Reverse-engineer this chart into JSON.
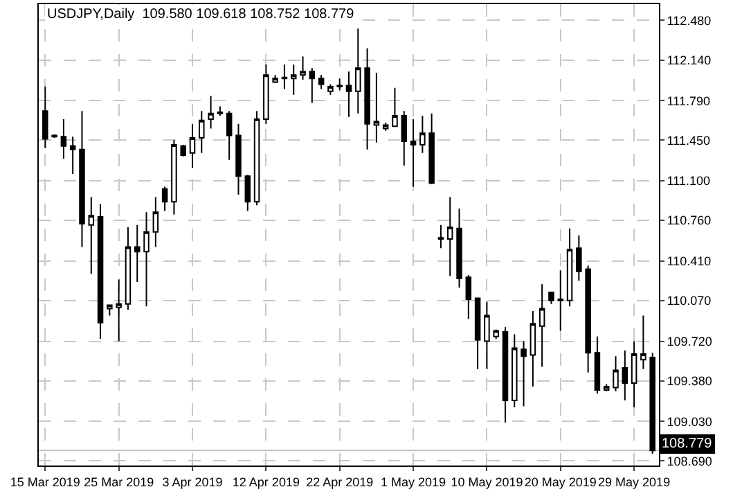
{
  "chart_data": {
    "type": "candlestick",
    "title": "USDJPY,Daily  109.580 109.618 108.752 108.779",
    "categories": [
      "15 Mar 2019",
      null,
      null,
      null,
      null,
      null,
      null,
      null,
      "25 Mar 2019",
      null,
      null,
      null,
      null,
      null,
      null,
      null,
      "3 Apr 2019",
      null,
      null,
      null,
      null,
      null,
      null,
      null,
      "12 Apr 2019",
      null,
      null,
      null,
      null,
      null,
      null,
      null,
      "22 Apr 2019",
      null,
      null,
      null,
      null,
      null,
      null,
      null,
      "1 May 2019",
      null,
      null,
      null,
      null,
      null,
      null,
      null,
      "10 May 2019",
      null,
      null,
      null,
      null,
      null,
      null,
      null,
      "20 May 2019",
      null,
      null,
      null,
      null,
      null,
      null,
      null,
      "29 May 2019",
      null,
      null
    ],
    "ohlc": [
      [
        111.7,
        111.91,
        111.38,
        111.46
      ],
      [
        111.49,
        111.5,
        111.47,
        111.48
      ],
      [
        111.48,
        111.63,
        111.29,
        111.4
      ],
      [
        111.4,
        111.48,
        111.16,
        111.37
      ],
      [
        111.37,
        111.7,
        110.53,
        110.73
      ],
      [
        110.72,
        110.96,
        110.3,
        110.8
      ],
      [
        110.79,
        110.9,
        109.74,
        109.88
      ],
      [
        110.0,
        110.03,
        109.94,
        110.03
      ],
      [
        110.01,
        110.25,
        109.72,
        110.04
      ],
      [
        110.04,
        110.7,
        109.99,
        110.53
      ],
      [
        110.53,
        110.72,
        110.23,
        110.49
      ],
      [
        110.49,
        110.83,
        110.02,
        110.66
      ],
      [
        110.66,
        110.96,
        110.53,
        110.83
      ],
      [
        111.03,
        111.05,
        110.84,
        110.92
      ],
      [
        110.92,
        111.45,
        110.81,
        111.41
      ],
      [
        111.4,
        111.41,
        111.31,
        111.32
      ],
      [
        111.34,
        111.59,
        111.21,
        111.47
      ],
      [
        111.47,
        111.7,
        111.34,
        111.62
      ],
      [
        111.63,
        111.83,
        111.55,
        111.68
      ],
      [
        111.68,
        111.74,
        111.66,
        111.69
      ],
      [
        111.68,
        111.7,
        111.28,
        111.49
      ],
      [
        111.49,
        111.59,
        110.98,
        111.14
      ],
      [
        111.14,
        111.15,
        110.84,
        110.92
      ],
      [
        110.92,
        111.7,
        110.89,
        111.63
      ],
      [
        111.63,
        112.1,
        111.59,
        112.01
      ],
      [
        111.95,
        112.01,
        111.94,
        111.98
      ],
      [
        111.98,
        112.1,
        111.89,
        111.99
      ],
      [
        111.98,
        112.1,
        111.84,
        112.01
      ],
      [
        112.01,
        112.17,
        111.97,
        112.04
      ],
      [
        112.04,
        112.07,
        111.77,
        111.98
      ],
      [
        111.98,
        112.01,
        111.89,
        111.93
      ],
      [
        111.87,
        111.93,
        111.84,
        111.91
      ],
      [
        111.91,
        111.98,
        111.88,
        111.92
      ],
      [
        111.92,
        112.04,
        111.65,
        111.87
      ],
      [
        111.87,
        112.41,
        111.68,
        112.07
      ],
      [
        112.07,
        112.24,
        111.37,
        111.59
      ],
      [
        111.58,
        112.03,
        111.43,
        111.61
      ],
      [
        111.55,
        111.6,
        111.53,
        111.58
      ],
      [
        111.57,
        111.9,
        111.57,
        111.66
      ],
      [
        111.66,
        111.7,
        111.23,
        111.44
      ],
      [
        111.44,
        111.63,
        111.05,
        111.41
      ],
      [
        111.41,
        111.66,
        111.34,
        111.51
      ],
      [
        111.51,
        111.68,
        111.07,
        111.08
      ],
      [
        110.61,
        110.72,
        110.52,
        110.6
      ],
      [
        110.6,
        110.96,
        110.28,
        110.7
      ],
      [
        110.69,
        110.86,
        110.18,
        110.26
      ],
      [
        110.27,
        110.29,
        109.91,
        110.08
      ],
      [
        110.09,
        110.09,
        109.48,
        109.73
      ],
      [
        109.72,
        110.06,
        109.48,
        109.94
      ],
      [
        109.76,
        109.82,
        109.74,
        109.81
      ],
      [
        109.8,
        109.84,
        109.02,
        109.21
      ],
      [
        109.21,
        109.78,
        109.15,
        109.66
      ],
      [
        109.65,
        109.72,
        109.16,
        109.59
      ],
      [
        109.6,
        109.98,
        109.33,
        109.87
      ],
      [
        109.85,
        110.21,
        109.5,
        110.0
      ],
      [
        110.14,
        110.14,
        110.04,
        110.07
      ],
      [
        110.08,
        110.33,
        109.81,
        110.07
      ],
      [
        110.07,
        110.69,
        110.02,
        110.51
      ],
      [
        110.52,
        110.63,
        110.24,
        110.32
      ],
      [
        110.34,
        110.37,
        109.45,
        109.62
      ],
      [
        109.62,
        109.76,
        109.27,
        109.3
      ],
      [
        109.3,
        109.35,
        109.29,
        109.33
      ],
      [
        109.32,
        109.59,
        109.29,
        109.47
      ],
      [
        109.49,
        109.64,
        109.21,
        109.36
      ],
      [
        109.36,
        109.72,
        109.15,
        109.61
      ],
      [
        109.56,
        109.94,
        109.48,
        109.61
      ],
      [
        109.58,
        109.618,
        108.752,
        108.779
      ]
    ],
    "ylim": [
      108.65,
      112.62
    ],
    "yticks": [
      {
        "value": 108.69,
        "label": "108.690"
      },
      {
        "value": 109.03,
        "label": "109.030"
      },
      {
        "value": 109.38,
        "label": "109.380"
      },
      {
        "value": 109.72,
        "label": "109.720"
      },
      {
        "value": 110.07,
        "label": "110.070"
      },
      {
        "value": 110.41,
        "label": "110.410"
      },
      {
        "value": 110.76,
        "label": "110.760"
      },
      {
        "value": 111.1,
        "label": "111.100"
      },
      {
        "value": 111.45,
        "label": "111.450"
      },
      {
        "value": 111.79,
        "label": "111.790"
      },
      {
        "value": 112.14,
        "label": "112.140"
      },
      {
        "value": 112.48,
        "label": "112.480"
      }
    ],
    "color": "#000000",
    "ref_lines": [
      {
        "axis": "y",
        "value": 108.779,
        "label": "108.779",
        "color": "#c0c0c0"
      }
    ],
    "grid": true,
    "legend": false
  }
}
